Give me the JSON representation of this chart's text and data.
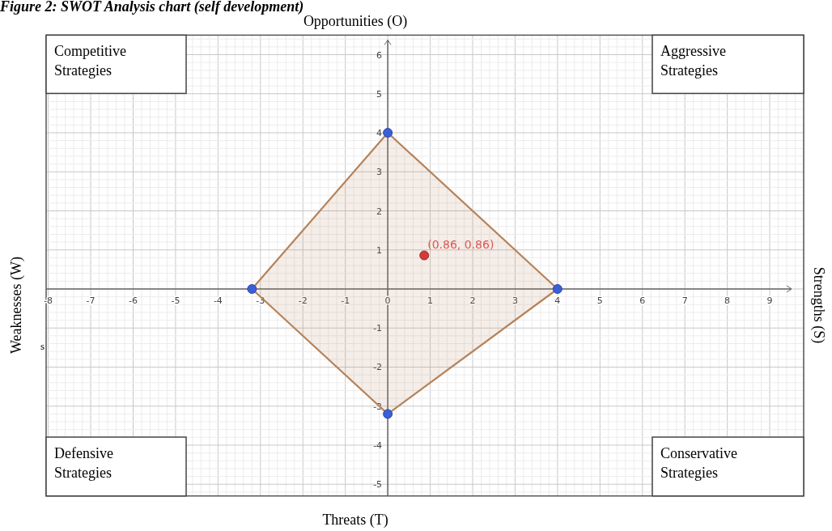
{
  "chart_data": {
    "type": "scatter",
    "title": "Figure 2: SWOT Analysis chart (self development)",
    "x2label": "Opportunities (O)",
    "xlabel": "Threats (T)",
    "ylabel": "Weaknesses (W)",
    "y2label": "Strengths (S)",
    "xlim": [
      -8.05,
      9.8
    ],
    "ylim": [
      -5.3,
      6.5
    ],
    "xticks": [
      -8,
      -7,
      -6,
      -5,
      -4,
      -3,
      -2,
      -1,
      0,
      1,
      2,
      3,
      4,
      5,
      6,
      7,
      8,
      9
    ],
    "yticks": [
      -5,
      -4,
      -3,
      -2,
      -1,
      1,
      2,
      3,
      4,
      5,
      6
    ],
    "grid": true,
    "marker": "circle",
    "series": [
      {
        "type": "area",
        "marker": "none",
        "color": "#b5835a",
        "x": [
          0,
          4,
          0,
          -3.2,
          0
        ],
        "values": [
          4,
          0,
          -3.2,
          0,
          4
        ]
      },
      {
        "color": "#3a5fd9",
        "x": [
          0,
          4,
          0,
          -3.2
        ],
        "values": [
          4,
          0,
          -3.2,
          0
        ]
      },
      {
        "color": "#d43a3a",
        "x": [
          0.86
        ],
        "values": [
          0.86
        ]
      }
    ],
    "annotations": [
      {
        "text": "(0.86, 0.86)",
        "x": 0.86,
        "y": 0.86
      },
      "Competitive Strategies",
      "Aggressive Strategies",
      "Defensive Strategies",
      "Conservative Strategies",
      "s"
    ]
  }
}
